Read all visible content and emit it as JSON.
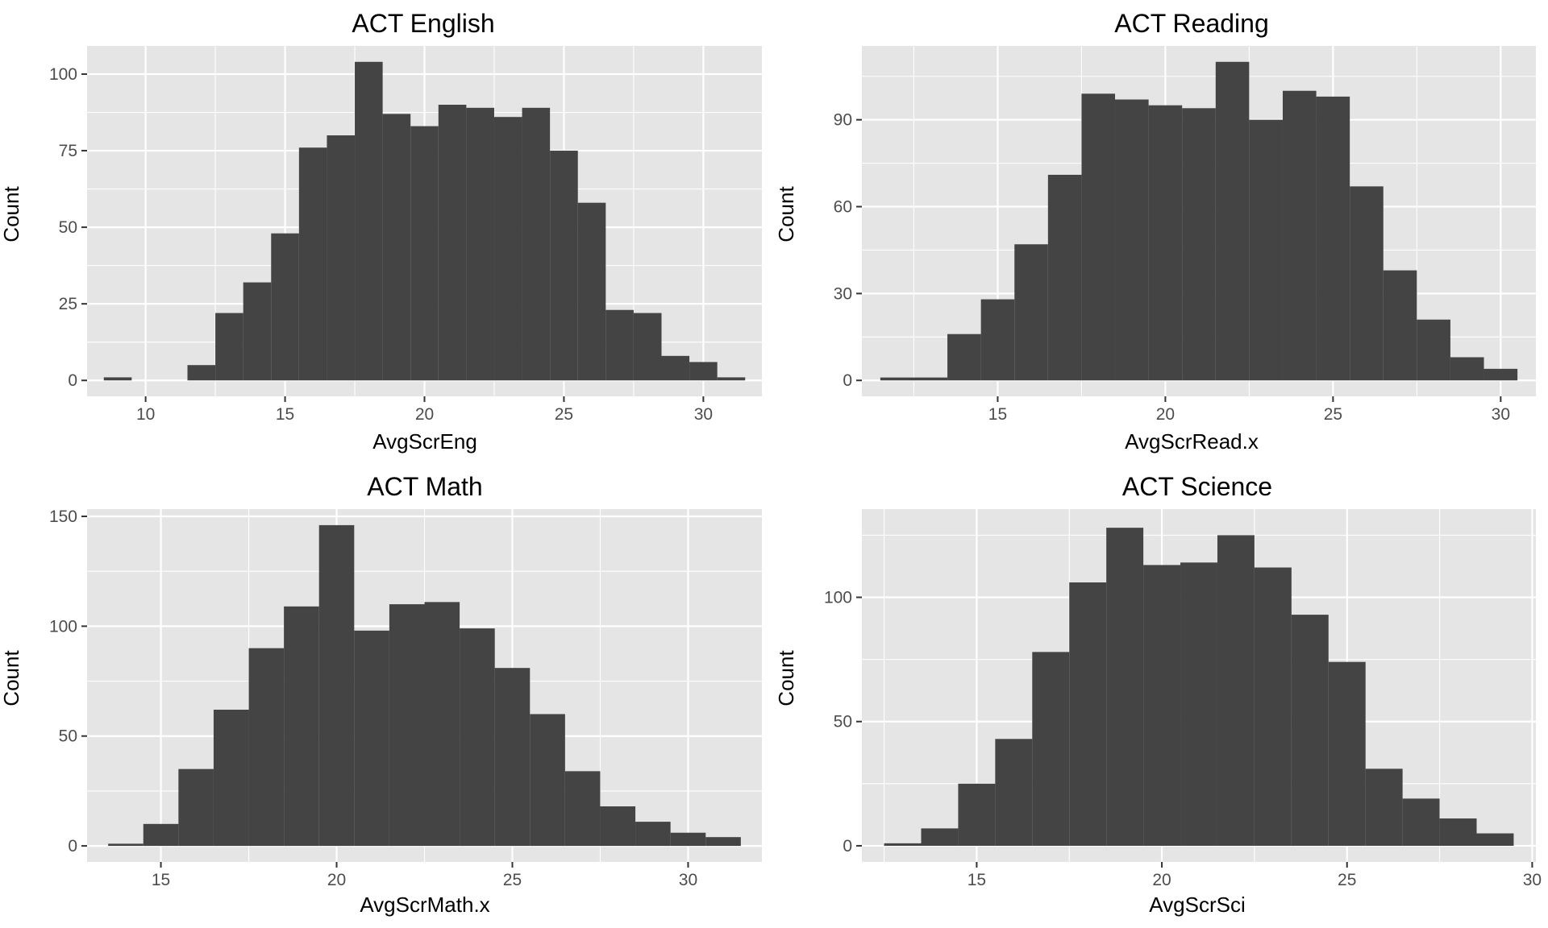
{
  "chart_data": [
    {
      "type": "bar",
      "title": "ACT English",
      "xlabel": "AvgScrEng",
      "ylabel": "Count",
      "xlim": [
        7.9,
        32.1
      ],
      "ylim": [
        -5.2,
        109.2
      ],
      "xticks": [
        10,
        15,
        20,
        25,
        30
      ],
      "xtick_labels": [
        "10",
        "15",
        "20",
        "25",
        "30"
      ],
      "yticks": [
        0,
        25,
        50,
        75,
        100
      ],
      "ytick_labels": [
        "0",
        "25",
        "50",
        "75",
        "100"
      ],
      "binwidth": 1,
      "bins_x": [
        9,
        10,
        11,
        12,
        13,
        14,
        15,
        16,
        17,
        18,
        19,
        20,
        21,
        22,
        23,
        24,
        25,
        26,
        27,
        28,
        29,
        30,
        31
      ],
      "values": [
        1,
        0,
        0,
        5,
        22,
        32,
        48,
        76,
        80,
        104,
        87,
        83,
        90,
        89,
        86,
        89,
        75,
        58,
        23,
        22,
        8,
        6,
        1
      ],
      "grid": true,
      "legend": "none"
    },
    {
      "type": "bar",
      "title": "ACT Reading",
      "xlabel": "AvgScrRead.x",
      "ylabel": "Count",
      "xlim": [
        10.95,
        31.05
      ],
      "ylim": [
        -5.5,
        115.5
      ],
      "xticks": [
        15,
        20,
        25,
        30
      ],
      "xtick_labels": [
        "15",
        "20",
        "25",
        "30"
      ],
      "yticks": [
        0,
        30,
        60,
        90
      ],
      "ytick_labels": [
        "0",
        "30",
        "60",
        "90"
      ],
      "binwidth": 1,
      "bins_x": [
        12,
        13,
        14,
        15,
        16,
        17,
        18,
        19,
        20,
        21,
        22,
        23,
        24,
        25,
        26,
        27,
        28,
        29,
        30
      ],
      "values": [
        1,
        1,
        16,
        28,
        47,
        71,
        99,
        97,
        95,
        94,
        110,
        90,
        100,
        98,
        67,
        38,
        21,
        8,
        4
      ],
      "grid": true,
      "legend": "none"
    },
    {
      "type": "bar",
      "title": "ACT Math",
      "xlabel": "AvgScrMath.x",
      "ylabel": "Count",
      "xlim": [
        12.9,
        32.1
      ],
      "ylim": [
        -7.3,
        153.3
      ],
      "xticks": [
        15,
        20,
        25,
        30
      ],
      "xtick_labels": [
        "15",
        "20",
        "25",
        "30"
      ],
      "yticks": [
        0,
        50,
        100,
        150
      ],
      "ytick_labels": [
        "0",
        "50",
        "100",
        "150"
      ],
      "binwidth": 1,
      "bins_x": [
        14,
        15,
        16,
        17,
        18,
        19,
        20,
        21,
        22,
        23,
        24,
        25,
        26,
        27,
        28,
        29,
        30,
        31
      ],
      "values": [
        1,
        10,
        35,
        62,
        90,
        109,
        146,
        98,
        110,
        111,
        99,
        81,
        60,
        34,
        18,
        11,
        6,
        4
      ],
      "grid": true,
      "legend": "none"
    },
    {
      "type": "bar",
      "title": "ACT Science",
      "xlabel": "AvgScrSci",
      "ylabel": "Count",
      "xlim": [
        11.9,
        30.1
      ],
      "ylim": [
        -6.5,
        135.5
      ],
      "xticks": [
        15,
        20,
        25,
        30
      ],
      "xtick_labels": [
        "15",
        "20",
        "25",
        "30"
      ],
      "yticks": [
        0,
        50,
        100
      ],
      "ytick_labels": [
        "0",
        "50",
        "100"
      ],
      "binwidth": 1,
      "bins_x": [
        13,
        14,
        15,
        16,
        17,
        18,
        19,
        20,
        21,
        22,
        23,
        24,
        25,
        26,
        27,
        28,
        29
      ],
      "values": [
        1,
        7,
        25,
        43,
        78,
        106,
        128,
        113,
        114,
        125,
        112,
        93,
        74,
        31,
        19,
        11,
        5
      ],
      "grid": true,
      "legend": "none"
    }
  ]
}
